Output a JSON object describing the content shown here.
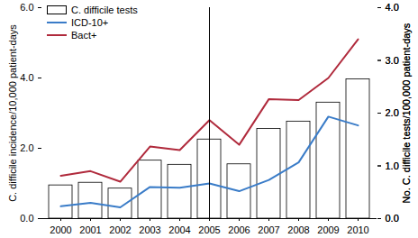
{
  "chart_data": {
    "type": "bar",
    "categories": [
      "2000",
      "2001",
      "2002",
      "2003",
      "2004",
      "2005",
      "2006",
      "2007",
      "2008",
      "2009",
      "2010"
    ],
    "y_label": "C. difficile incidence/10,000 patient-days",
    "y2_label": "No. C. difficile tests/100,000 patient-days",
    "ylim": [
      0,
      6
    ],
    "yticks": [
      0,
      2,
      4,
      6
    ],
    "y2lim": [
      0,
      4
    ],
    "y2ticks": [
      0,
      1,
      2,
      3,
      4
    ],
    "legend": "upper left",
    "series": [
      {
        "name": "C. difficile tests",
        "type": "bar",
        "axis": "y2",
        "color": "#ffffff",
        "values": [
          0.63,
          0.68,
          0.57,
          1.1,
          1.02,
          1.5,
          1.03,
          1.7,
          1.84,
          2.2,
          2.64
        ]
      },
      {
        "name": "ICD-10+",
        "type": "line",
        "color": "#3a7cc8",
        "values": [
          0.35,
          0.45,
          0.32,
          0.9,
          0.88,
          1.0,
          0.78,
          1.1,
          1.6,
          2.9,
          2.65
        ]
      },
      {
        "name": "Bact+",
        "type": "line",
        "color": "#b02a3c",
        "values": [
          1.22,
          1.35,
          1.05,
          2.05,
          1.95,
          2.8,
          2.1,
          3.4,
          3.37,
          4.0,
          5.1
        ]
      }
    ]
  }
}
